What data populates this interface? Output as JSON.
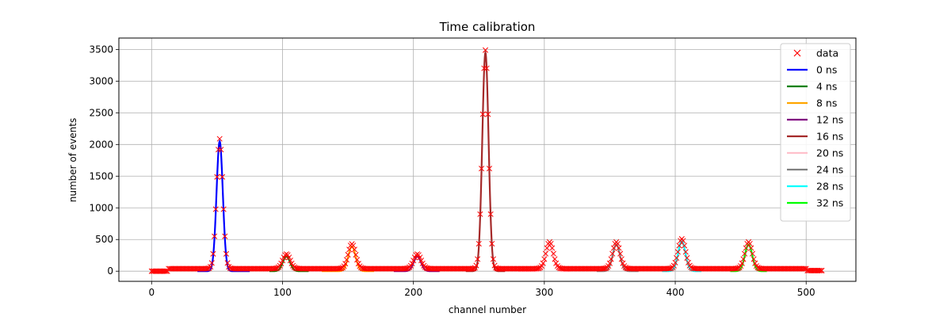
{
  "chart_data": {
    "type": "line",
    "title": "Time calibration",
    "xlabel": "channel number",
    "ylabel": "number of events",
    "xlim": [
      -25,
      538
    ],
    "ylim": [
      -160,
      3680
    ],
    "x_ticks": [
      0,
      100,
      200,
      300,
      400,
      500
    ],
    "y_ticks": [
      0,
      500,
      1000,
      1500,
      2000,
      2500,
      3000,
      3500
    ],
    "grid": true,
    "legend_position": "top-right",
    "data_series": {
      "name": "data",
      "marker": "x",
      "color": "#ff0000",
      "baseline_ranges": [
        [
          0,
          12,
          0
        ],
        [
          13,
          512,
          40
        ]
      ],
      "tail_end": 500,
      "tail_value": 10,
      "peaks": [
        {
          "center": 52,
          "amplitude": 2050,
          "sigma": 2.4
        },
        {
          "center": 103,
          "amplitude": 230,
          "sigma": 2.8
        },
        {
          "center": 153,
          "amplitude": 390,
          "sigma": 2.8
        },
        {
          "center": 203,
          "amplitude": 230,
          "sigma": 2.8
        },
        {
          "center": 255,
          "amplitude": 3450,
          "sigma": 2.4
        },
        {
          "center": 304,
          "amplitude": 420,
          "sigma": 2.8
        },
        {
          "center": 355,
          "amplitude": 420,
          "sigma": 2.8
        },
        {
          "center": 405,
          "amplitude": 470,
          "sigma": 2.8
        },
        {
          "center": 456,
          "amplitude": 420,
          "sigma": 2.8
        }
      ]
    },
    "fit_series": [
      {
        "name": "0 ns",
        "color": "#0000ff",
        "center": 52,
        "amplitude": 2050,
        "sigma": 2.4,
        "range": [
          35,
          75
        ]
      },
      {
        "name": "4 ns",
        "color": "#008000",
        "center": 103,
        "amplitude": 230,
        "sigma": 2.8,
        "range": [
          90,
          120
        ]
      },
      {
        "name": "8 ns",
        "color": "#ffa500",
        "center": 153,
        "amplitude": 390,
        "sigma": 2.8,
        "range": [
          130,
          170
        ]
      },
      {
        "name": "12 ns",
        "color": "#800080",
        "center": 203,
        "amplitude": 230,
        "sigma": 2.8,
        "range": [
          185,
          220
        ]
      },
      {
        "name": "16 ns",
        "color": "#a52a2a",
        "center": 255,
        "amplitude": 3450,
        "sigma": 2.4,
        "range": [
          240,
          270
        ]
      },
      {
        "name": "20 ns",
        "color": "#ffc0cb",
        "center": 304,
        "amplitude": 420,
        "sigma": 2.8,
        "range": [
          280,
          320
        ]
      },
      {
        "name": "24 ns",
        "color": "#808080",
        "center": 355,
        "amplitude": 420,
        "sigma": 2.8,
        "range": [
          340,
          372
        ]
      },
      {
        "name": "28 ns",
        "color": "#00ffff",
        "center": 405,
        "amplitude": 470,
        "sigma": 2.8,
        "range": [
          390,
          420
        ]
      },
      {
        "name": "32 ns",
        "color": "#00ff00",
        "center": 456,
        "amplitude": 420,
        "sigma": 2.8,
        "range": [
          442,
          470
        ]
      }
    ]
  }
}
